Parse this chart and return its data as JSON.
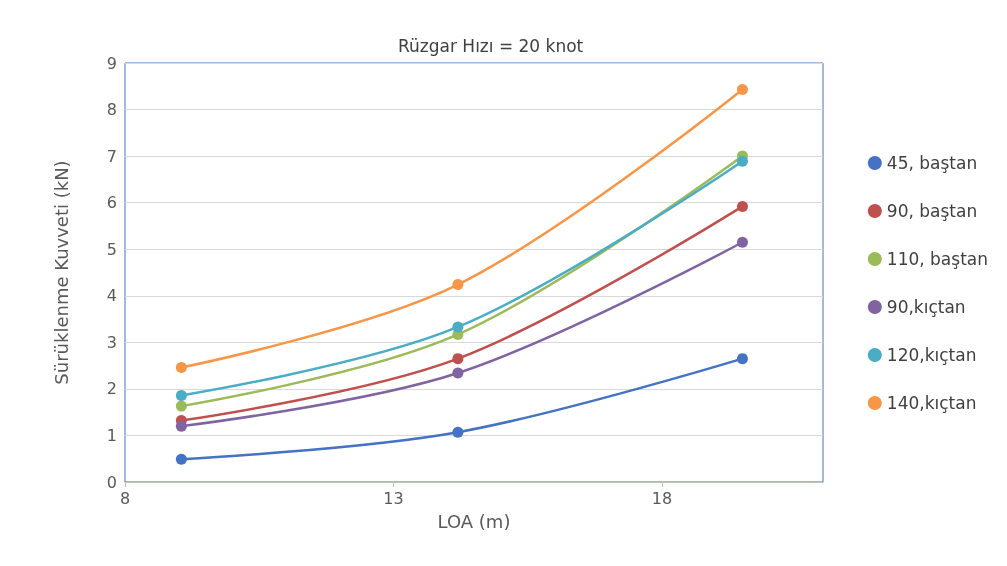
{
  "chart_data": {
    "type": "line",
    "title": "Rüzgar Hızı = 20 knot",
    "xlabel": "LOA (m)",
    "ylabel": "Sürüklenme Kuvveti (kN)",
    "x": [
      9.05,
      14.2,
      19.5
    ],
    "series": [
      {
        "name": "45, baştan",
        "color": "#4472c4",
        "values": [
          0.49,
          1.07,
          2.65
        ]
      },
      {
        "name": "90, baştan",
        "color": "#c0504d",
        "values": [
          1.32,
          2.65,
          5.92
        ]
      },
      {
        "name": "110, baştan",
        "color": "#9bbb59",
        "values": [
          1.63,
          3.17,
          7.0
        ]
      },
      {
        "name": "90,kıçtan",
        "color": "#8064a2",
        "values": [
          1.2,
          2.34,
          5.15
        ]
      },
      {
        "name": "120,kıçtan",
        "color": "#4bacc6",
        "values": [
          1.86,
          3.33,
          6.89
        ]
      },
      {
        "name": "140,kıçtan",
        "color": "#f79646",
        "values": [
          2.46,
          4.24,
          8.43
        ]
      }
    ],
    "xlim": [
      8,
      21
    ],
    "xticks": [
      8,
      13,
      18
    ],
    "ylim": [
      0,
      9
    ],
    "yticks": [
      0,
      1,
      2,
      3,
      4,
      5,
      6,
      7,
      8,
      9
    ],
    "grid": "y",
    "legend": "right",
    "marker": "circle",
    "line_style": "solid"
  }
}
